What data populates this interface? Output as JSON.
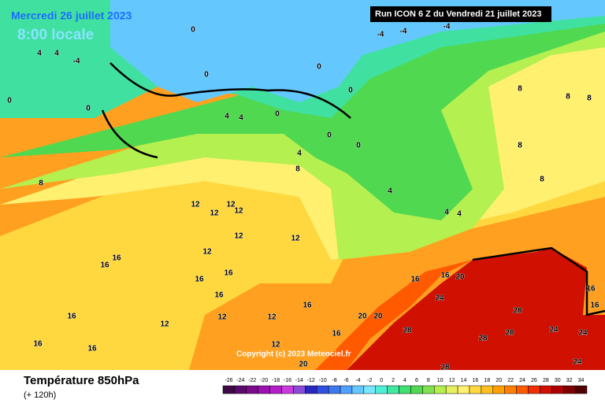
{
  "header": {
    "date": "Mercredi 26 juillet 2023",
    "time": "8:00 locale",
    "run": "Run ICON 6 Z du Vendredi 21 juillet 2023"
  },
  "footer": {
    "title": "Température 850hPa",
    "lead": "(+ 120h)",
    "copyright": "Copyright (c) 2023 Meteociel.fr"
  },
  "legend": {
    "ticks": [
      -26,
      -24,
      -22,
      -20,
      -18,
      -16,
      -14,
      -12,
      -10,
      -8,
      -6,
      -4,
      -2,
      0,
      2,
      4,
      6,
      8,
      10,
      12,
      14,
      16,
      18,
      20,
      22,
      24,
      26,
      28,
      30,
      32,
      34
    ],
    "colors": [
      "#3c0846",
      "#5a0a6a",
      "#7a0c8c",
      "#9a10b0",
      "#b41ec8",
      "#c83cdc",
      "#8a4ad8",
      "#2828c0",
      "#3050e0",
      "#3c78f0",
      "#50a0ff",
      "#64c8ff",
      "#78e6ff",
      "#50f0d8",
      "#40e8a0",
      "#40e070",
      "#50d850",
      "#80e050",
      "#b4f050",
      "#e6f060",
      "#fff070",
      "#ffd840",
      "#ffc020",
      "#ffa000",
      "#ff8000",
      "#ff5a00",
      "#f03000",
      "#d01000",
      "#b00000",
      "#800000",
      "#500000"
    ]
  },
  "map_labels": [
    0,
    0,
    4,
    4,
    -4,
    0,
    0,
    0,
    0,
    0,
    0,
    0,
    4,
    4,
    4,
    8,
    8,
    8,
    8,
    8,
    4,
    4,
    4,
    12,
    12,
    12,
    12,
    12,
    12,
    12,
    16,
    16,
    16,
    16,
    16,
    16,
    16,
    16,
    16,
    16,
    16,
    20,
    20,
    20,
    24,
    28,
    28,
    28,
    28,
    24,
    24,
    24,
    28,
    12,
    12,
    12,
    12,
    16,
    20,
    -4,
    -4,
    -4,
    16,
    16,
    8,
    8
  ]
}
